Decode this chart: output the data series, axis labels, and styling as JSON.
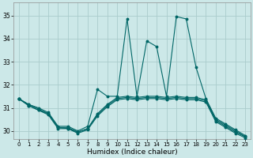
{
  "bg_color": "#cce8e8",
  "grid_color": "#aacccc",
  "line_color": "#006666",
  "xlabel": "Humidex (Indice chaleur)",
  "xlim": [
    -0.5,
    23.5
  ],
  "ylim": [
    29.65,
    35.55
  ],
  "yticks": [
    30,
    31,
    32,
    33,
    34,
    35
  ],
  "xticks": [
    0,
    1,
    2,
    3,
    4,
    5,
    6,
    7,
    8,
    9,
    10,
    11,
    12,
    13,
    14,
    15,
    16,
    17,
    18,
    19,
    20,
    21,
    22,
    23
  ],
  "line1": [
    31.4,
    31.15,
    31.0,
    30.8,
    30.2,
    30.2,
    30.0,
    30.2,
    31.8,
    31.5,
    31.5,
    34.85,
    31.5,
    33.9,
    33.65,
    31.5,
    34.95,
    34.85,
    32.75,
    31.4,
    30.55,
    30.3,
    30.05,
    29.8
  ],
  "line2": [
    31.4,
    31.15,
    30.95,
    30.75,
    30.15,
    30.15,
    29.95,
    30.1,
    30.75,
    31.15,
    31.45,
    31.5,
    31.45,
    31.5,
    31.5,
    31.45,
    31.5,
    31.45,
    31.45,
    31.35,
    30.5,
    30.25,
    30.0,
    29.75
  ],
  "line3": [
    31.4,
    31.1,
    30.9,
    30.75,
    30.15,
    30.1,
    29.95,
    30.1,
    30.7,
    31.1,
    31.4,
    31.45,
    31.4,
    31.45,
    31.45,
    31.4,
    31.45,
    31.4,
    31.4,
    31.3,
    30.45,
    30.2,
    29.95,
    29.75
  ],
  "line4": [
    31.4,
    31.1,
    30.9,
    30.7,
    30.1,
    30.1,
    29.9,
    30.05,
    30.65,
    31.05,
    31.35,
    31.4,
    31.35,
    31.4,
    31.4,
    31.35,
    31.4,
    31.35,
    31.35,
    31.25,
    30.4,
    30.15,
    29.9,
    29.7
  ]
}
